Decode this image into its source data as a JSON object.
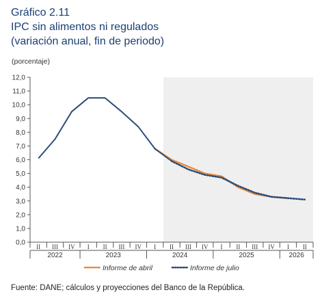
{
  "title": {
    "line1": "Gráfico 2.11",
    "line2": "IPC sin alimentos ni regulados",
    "line3": "(variación anual, fin de periodo)"
  },
  "units_label": "(porcentaje)",
  "source": "Fuente: DANE; cálculos y proyecciones del Banco de la República.",
  "chart_data": {
    "type": "line",
    "ylim": [
      0,
      12
    ],
    "yticks": [
      "0,0",
      "1,0",
      "2,0",
      "3,0",
      "4,0",
      "5,0",
      "6,0",
      "7,0",
      "8,0",
      "9,0",
      "10,0",
      "11,0",
      "12,0"
    ],
    "quarter_labels": [
      "II",
      "III",
      "IV",
      "I",
      "II",
      "III",
      "IV",
      "I",
      "II",
      "III",
      "IV",
      "I",
      "II",
      "III",
      "IV",
      "I",
      "II"
    ],
    "years": [
      {
        "label": "2022",
        "from": 0,
        "to": 2
      },
      {
        "label": "2023",
        "from": 3,
        "to": 6
      },
      {
        "label": "2024",
        "from": 7,
        "to": 10
      },
      {
        "label": "2025",
        "from": 11,
        "to": 14
      },
      {
        "label": "2026",
        "from": 15,
        "to": 16
      }
    ],
    "projection_shading_from": 8,
    "series": [
      {
        "name": "Informe de abril",
        "color": "#e8883a",
        "style": "dotted",
        "values": [
          null,
          null,
          null,
          null,
          null,
          null,
          null,
          6.8,
          6.0,
          5.5,
          5.0,
          4.8,
          4.0,
          3.5,
          3.3,
          3.2,
          null
        ]
      },
      {
        "name": "Informe de julio",
        "color": "#2a4d78",
        "style": "mixed",
        "solid_until": 8,
        "values": [
          6.1,
          7.5,
          9.5,
          10.5,
          10.5,
          9.5,
          8.4,
          6.8,
          5.9,
          5.3,
          4.9,
          4.7,
          4.1,
          3.6,
          3.3,
          3.2,
          3.1
        ]
      }
    ],
    "legend_position": "bottom"
  }
}
